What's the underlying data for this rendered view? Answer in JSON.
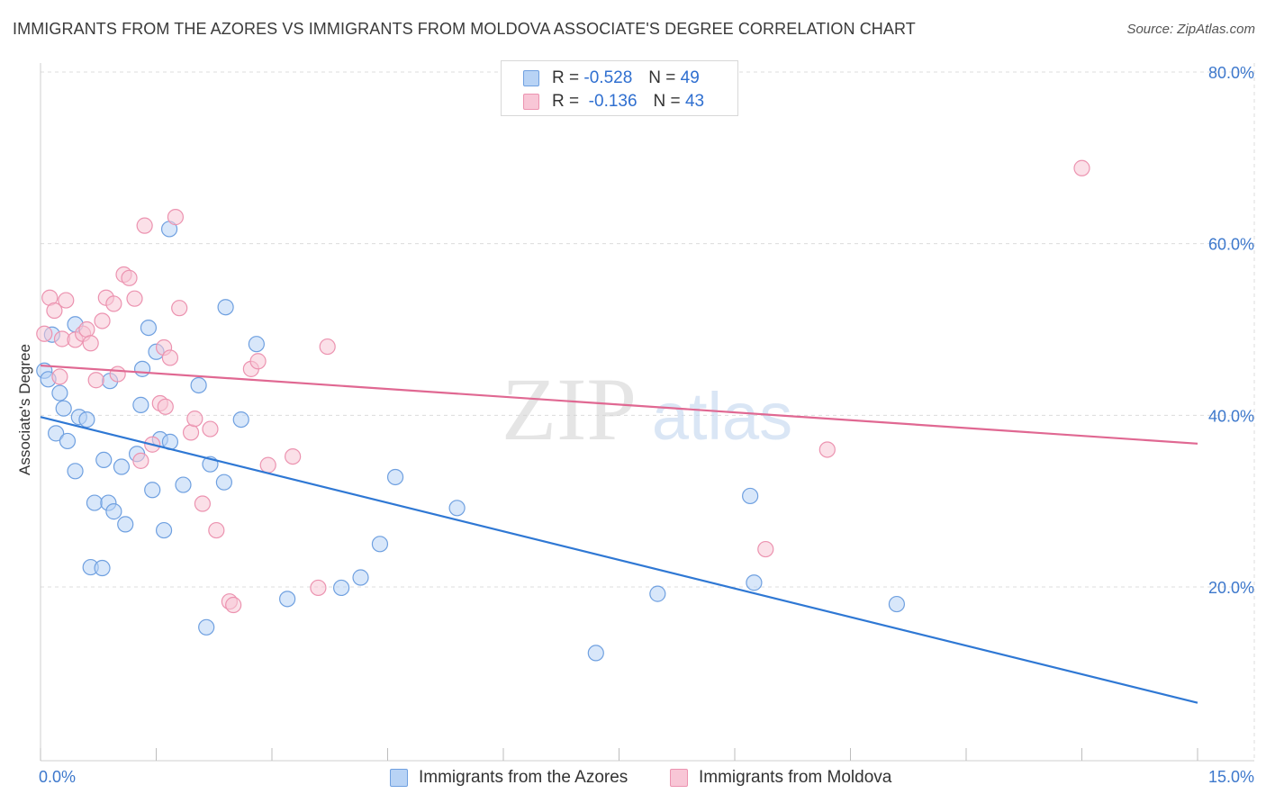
{
  "header": {
    "title": "IMMIGRANTS FROM THE AZORES VS IMMIGRANTS FROM MOLDOVA ASSOCIATE'S DEGREE CORRELATION CHART",
    "source": "Source: ZipAtlas.com"
  },
  "legend": {
    "azores": {
      "r_label": "R =",
      "r_value": "-0.528",
      "n_label": "N =",
      "n_value": "49"
    },
    "moldova": {
      "r_label": "R =",
      "r_value": "-0.136",
      "n_label": "N =",
      "n_value": "43"
    }
  },
  "bottom_legend": {
    "azores": "Immigrants from the Azores",
    "moldova": "Immigrants from Moldova"
  },
  "watermark": {
    "zip": "ZIP",
    "atlas": "atlas"
  },
  "colors": {
    "azores_fill": "#b8d3f5",
    "azores_stroke": "#6fa0e0",
    "azores_line": "#2f78d4",
    "moldova_fill": "#f8c6d6",
    "moldova_stroke": "#ec93b0",
    "moldova_line": "#e06892",
    "tick_label": "#3d78cc"
  },
  "chart_data": {
    "type": "scatter",
    "title": "IMMIGRANTS FROM THE AZORES VS IMMIGRANTS FROM MOLDOVA ASSOCIATE'S DEGREE CORRELATION CHART",
    "xlabel": "",
    "ylabel": "Associate's Degree",
    "xlim": [
      0,
      15
    ],
    "ylim": [
      2,
      82
    ],
    "x_tick_labels": [
      {
        "value": 0,
        "label": "0.0%"
      },
      {
        "value": 15,
        "label": "15.0%"
      }
    ],
    "x_minor_ticks": [
      0,
      1.5,
      3,
      4.5,
      6,
      7.5,
      9,
      10.5,
      12,
      13.5,
      15
    ],
    "y_ticks": [
      {
        "value": 20,
        "label": "20.0%"
      },
      {
        "value": 40,
        "label": "40.0%"
      },
      {
        "value": 60,
        "label": "60.0%"
      },
      {
        "value": 80,
        "label": "80.0%"
      }
    ],
    "grid": true,
    "series": [
      {
        "name": "Immigrants from the Azores",
        "r": -0.528,
        "n": 49,
        "trend": {
          "x": [
            0,
            15
          ],
          "y": [
            39.8,
            6.5
          ]
        },
        "points": [
          [
            0.05,
            45.2
          ],
          [
            0.1,
            44.2
          ],
          [
            0.15,
            49.4
          ],
          [
            0.2,
            37.9
          ],
          [
            0.25,
            42.6
          ],
          [
            0.3,
            40.8
          ],
          [
            0.35,
            37.0
          ],
          [
            0.45,
            33.5
          ],
          [
            0.5,
            39.8
          ],
          [
            0.6,
            39.5
          ],
          [
            0.45,
            50.6
          ],
          [
            0.65,
            22.3
          ],
          [
            0.7,
            29.8
          ],
          [
            0.8,
            22.2
          ],
          [
            0.82,
            34.8
          ],
          [
            0.88,
            29.8
          ],
          [
            0.95,
            28.8
          ],
          [
            1.05,
            34.0
          ],
          [
            1.1,
            27.3
          ],
          [
            0.9,
            44.0
          ],
          [
            1.25,
            35.5
          ],
          [
            1.3,
            41.2
          ],
          [
            1.32,
            45.4
          ],
          [
            1.4,
            50.2
          ],
          [
            1.45,
            31.3
          ],
          [
            1.5,
            47.4
          ],
          [
            1.55,
            37.2
          ],
          [
            1.6,
            26.6
          ],
          [
            1.68,
            36.9
          ],
          [
            1.67,
            61.7
          ],
          [
            1.85,
            31.9
          ],
          [
            2.05,
            43.5
          ],
          [
            2.15,
            15.3
          ],
          [
            2.2,
            34.3
          ],
          [
            2.38,
            32.2
          ],
          [
            2.4,
            52.6
          ],
          [
            2.6,
            39.5
          ],
          [
            2.8,
            48.3
          ],
          [
            3.2,
            18.6
          ],
          [
            3.9,
            19.9
          ],
          [
            4.15,
            21.1
          ],
          [
            4.4,
            25.0
          ],
          [
            4.6,
            32.8
          ],
          [
            5.4,
            29.2
          ],
          [
            7.2,
            12.3
          ],
          [
            8.0,
            19.2
          ],
          [
            9.2,
            30.6
          ],
          [
            9.25,
            20.5
          ],
          [
            11.1,
            18.0
          ]
        ]
      },
      {
        "name": "Immigrants from Moldova",
        "r": -0.136,
        "n": 43,
        "trend": {
          "x": [
            0,
            15
          ],
          "y": [
            45.8,
            36.7
          ]
        },
        "points": [
          [
            0.05,
            49.5
          ],
          [
            0.12,
            53.7
          ],
          [
            0.18,
            52.2
          ],
          [
            0.28,
            48.9
          ],
          [
            0.33,
            53.4
          ],
          [
            0.45,
            48.8
          ],
          [
            0.55,
            49.5
          ],
          [
            0.6,
            50.0
          ],
          [
            0.65,
            48.4
          ],
          [
            0.72,
            44.1
          ],
          [
            0.8,
            51.0
          ],
          [
            0.85,
            53.7
          ],
          [
            0.95,
            53.0
          ],
          [
            1.0,
            44.8
          ],
          [
            1.08,
            56.4
          ],
          [
            1.15,
            56.0
          ],
          [
            1.22,
            53.6
          ],
          [
            1.3,
            34.7
          ],
          [
            1.35,
            62.1
          ],
          [
            1.45,
            36.6
          ],
          [
            1.55,
            41.4
          ],
          [
            1.6,
            47.9
          ],
          [
            1.62,
            41.0
          ],
          [
            1.68,
            46.7
          ],
          [
            1.75,
            63.1
          ],
          [
            1.8,
            52.5
          ],
          [
            1.95,
            38.0
          ],
          [
            2.0,
            39.6
          ],
          [
            2.1,
            29.7
          ],
          [
            2.2,
            38.4
          ],
          [
            2.28,
            26.6
          ],
          [
            2.45,
            18.3
          ],
          [
            2.5,
            17.9
          ],
          [
            2.73,
            45.4
          ],
          [
            2.82,
            46.3
          ],
          [
            2.95,
            34.2
          ],
          [
            3.27,
            35.2
          ],
          [
            3.6,
            19.9
          ],
          [
            3.72,
            48.0
          ],
          [
            9.4,
            24.4
          ],
          [
            10.2,
            36.0
          ],
          [
            13.5,
            68.8
          ],
          [
            0.25,
            44.5
          ]
        ]
      }
    ]
  }
}
